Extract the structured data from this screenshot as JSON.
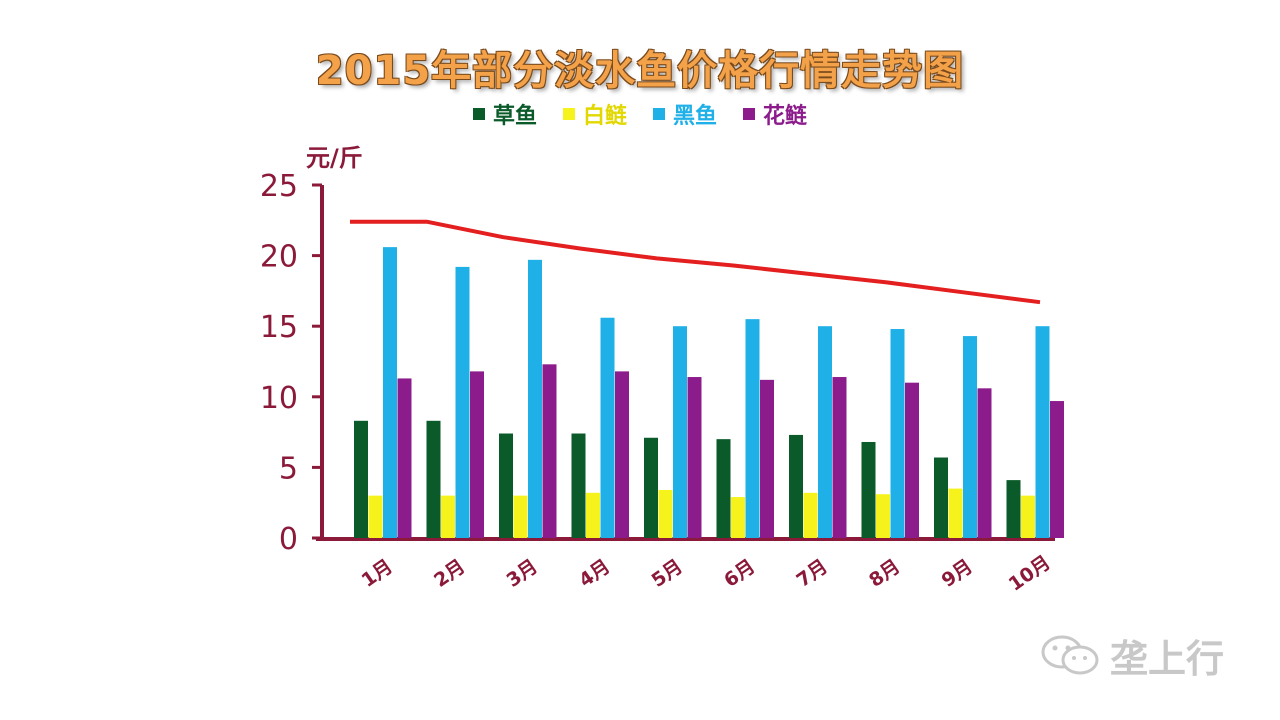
{
  "chart_data": {
    "type": "bar",
    "title": "2015年部分淡水鱼价格行情走势图",
    "ylabel": "元/斤",
    "xlabel": "",
    "ylim": [
      0,
      25
    ],
    "yticks": [
      "25",
      "20",
      "15",
      "10",
      "5",
      "0"
    ],
    "categories": [
      "1月",
      "2月",
      "3月",
      "4月",
      "5月",
      "6月",
      "7月",
      "8月",
      "9月",
      "10月"
    ],
    "series": [
      {
        "name": "草鱼",
        "color": "#0a5a2a",
        "values": [
          8.3,
          8.3,
          7.4,
          7.4,
          7.1,
          7.0,
          7.3,
          6.8,
          5.7,
          4.1
        ]
      },
      {
        "name": "白鲢",
        "color": "#f6f21c",
        "values": [
          3.0,
          3.0,
          3.0,
          3.2,
          3.4,
          2.9,
          3.2,
          3.1,
          3.5,
          3.0
        ]
      },
      {
        "name": "黑鱼",
        "color": "#1fb0e8",
        "values": [
          20.6,
          19.2,
          19.7,
          15.6,
          15.0,
          15.5,
          15.0,
          14.8,
          14.3,
          15.0
        ]
      },
      {
        "name": "花鲢",
        "color": "#8c1c8c",
        "values": [
          11.3,
          11.8,
          12.3,
          11.8,
          11.4,
          11.2,
          11.4,
          11.0,
          10.6,
          9.7
        ]
      }
    ],
    "trend_line": {
      "color": "#e41f1f",
      "values": [
        22.4,
        22.4,
        21.3,
        20.5,
        19.8,
        19.3,
        18.7,
        18.1,
        17.4,
        16.7
      ]
    },
    "axis_color": "#8b1a3a",
    "grid": false
  },
  "watermark": {
    "text": "垄上行",
    "icon": "wechat-icon"
  }
}
